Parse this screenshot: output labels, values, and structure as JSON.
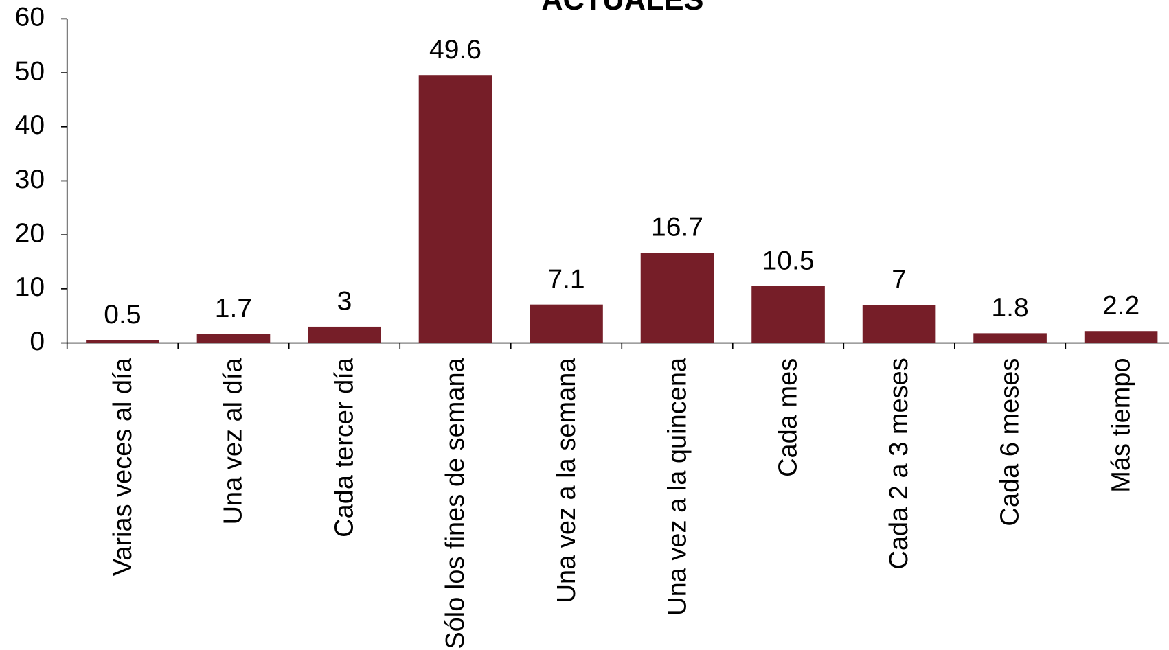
{
  "chart_data": {
    "type": "bar",
    "title": "ACTUALES",
    "categories": [
      "Varias veces al día",
      "Una vez al día",
      "Cada tercer día",
      "Sólo los fines de semana",
      "Una vez a la semana",
      "Una vez a la quincena",
      "Cada mes",
      "Cada 2 a 3 meses",
      "Cada 6 meses",
      "Más tiempo"
    ],
    "values": [
      0.5,
      1.7,
      3,
      49.6,
      7.1,
      16.7,
      10.5,
      7,
      1.8,
      2.2
    ],
    "color": "#761e28",
    "ylim": [
      0,
      60
    ],
    "yticks": [
      0,
      10,
      20,
      30,
      40,
      50,
      60
    ]
  }
}
